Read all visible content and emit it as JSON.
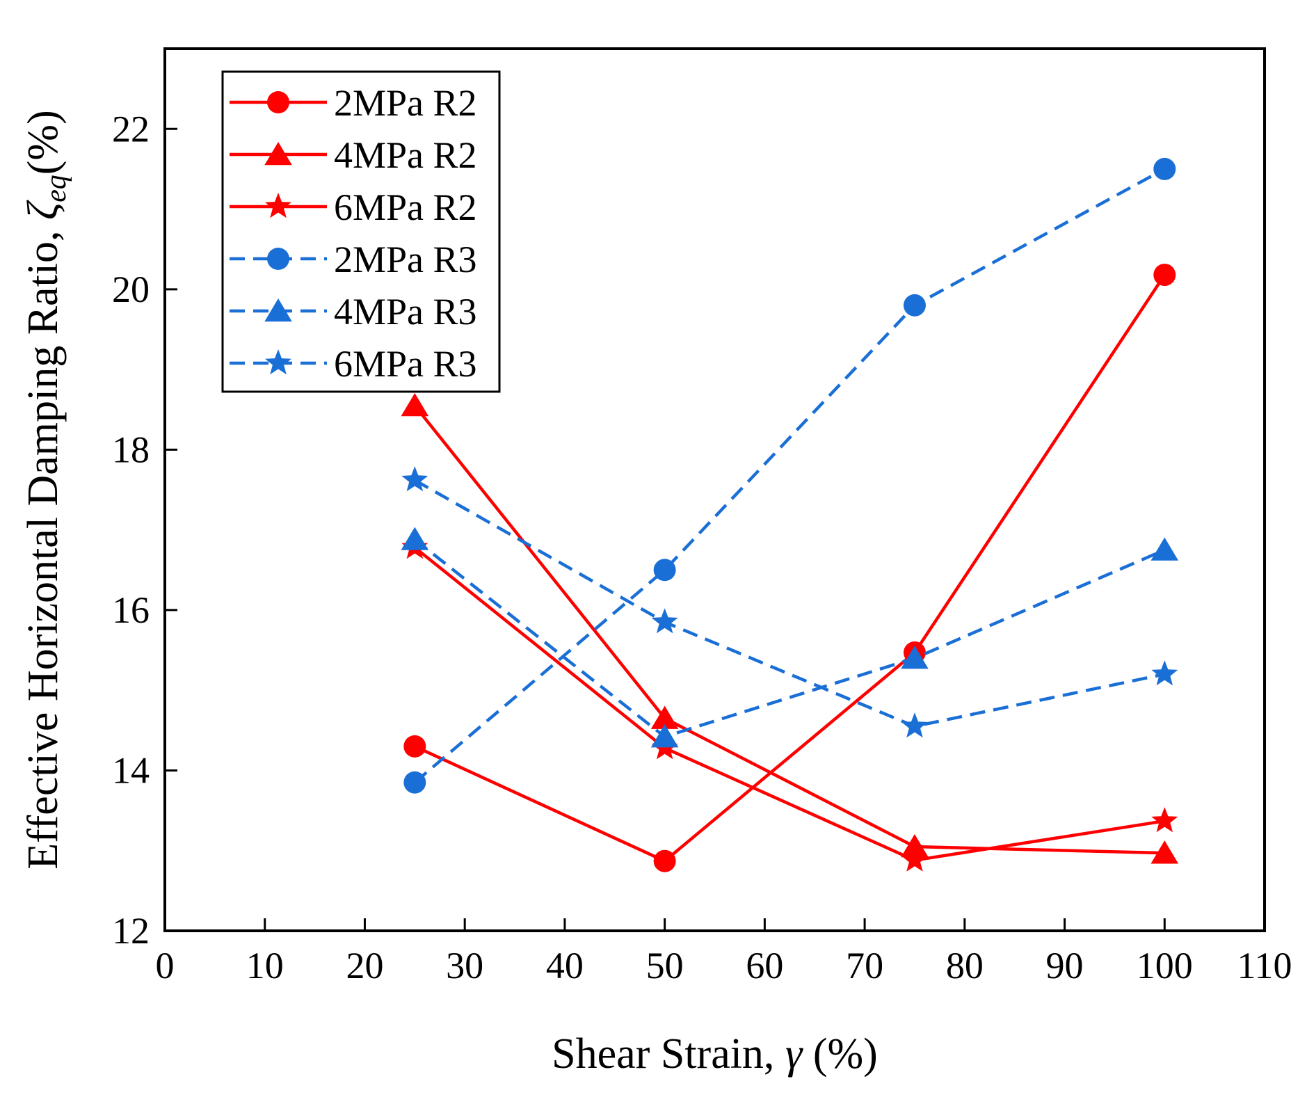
{
  "chart_data": {
    "type": "line",
    "title": "",
    "xlabel": {
      "text": "Shear Strain, ",
      "symbol": "γ",
      "unit": " (%)"
    },
    "ylabel": {
      "text": "Effective Horizontal Damping Ratio, ",
      "symbol": "ζ",
      "subscript": "eq",
      "unit": "(%)"
    },
    "xlim": [
      0,
      110
    ],
    "ylim": [
      12,
      23
    ],
    "xticks": [
      "0",
      "10",
      "20",
      "30",
      "40",
      "50",
      "60",
      "70",
      "80",
      "90",
      "100",
      "110"
    ],
    "yticks": [
      "12",
      "14",
      "16",
      "18",
      "20",
      "22"
    ],
    "legend_position": "top-left",
    "x": [
      25,
      50,
      75,
      100
    ],
    "series": [
      {
        "name": "2MPa R2",
        "color": "#ff0000",
        "dash": "solid",
        "marker": "circle",
        "values": [
          14.3,
          12.87,
          15.47,
          20.18
        ]
      },
      {
        "name": "4MPa R2",
        "color": "#ff0000",
        "dash": "solid",
        "marker": "triangle",
        "values": [
          18.55,
          14.65,
          13.05,
          12.97
        ]
      },
      {
        "name": "6MPa R2",
        "color": "#ff0000",
        "dash": "solid",
        "marker": "star",
        "values": [
          16.78,
          14.28,
          12.88,
          13.37
        ]
      },
      {
        "name": "2MPa R3",
        "color": "#1a6fd6",
        "dash": "dashed",
        "marker": "circle",
        "values": [
          13.85,
          16.5,
          19.8,
          21.5
        ]
      },
      {
        "name": "4MPa R3",
        "color": "#1a6fd6",
        "dash": "dashed",
        "marker": "triangle",
        "values": [
          16.88,
          14.42,
          15.4,
          16.75
        ]
      },
      {
        "name": "6MPa R3",
        "color": "#1a6fd6",
        "dash": "dashed",
        "marker": "star",
        "values": [
          17.62,
          15.85,
          14.55,
          15.2
        ]
      }
    ]
  }
}
